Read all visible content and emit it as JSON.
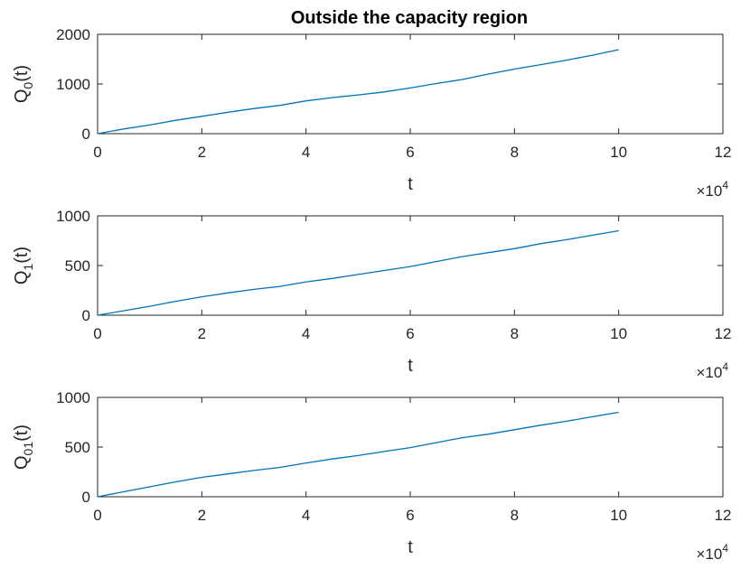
{
  "figure_title": "Outside the capacity region",
  "exponent_base": "×10",
  "exponent_power": "4",
  "line_color": "#0072BD",
  "chart_data": [
    {
      "type": "line",
      "title": "Outside the capacity region",
      "xlabel": "t",
      "ylabel_main": "Q",
      "ylabel_sub": "0",
      "ylabel_tail": "(t)",
      "xlim": [
        0,
        120000
      ],
      "ylim": [
        0,
        2000
      ],
      "xticks": [
        0,
        20000,
        40000,
        60000,
        80000,
        100000,
        120000
      ],
      "xtick_labels": [
        "0",
        "2",
        "4",
        "6",
        "8",
        "10",
        "12"
      ],
      "yticks": [
        0,
        1000,
        2000
      ],
      "ytick_labels": [
        "0",
        "1000",
        "2000"
      ],
      "grid": false,
      "x": [
        0,
        5000,
        10000,
        15000,
        20000,
        25000,
        30000,
        35000,
        40000,
        45000,
        50000,
        55000,
        60000,
        65000,
        70000,
        75000,
        80000,
        85000,
        90000,
        95000,
        100000
      ],
      "y": [
        0,
        95,
        175,
        270,
        350,
        430,
        505,
        570,
        660,
        725,
        780,
        840,
        920,
        1010,
        1090,
        1200,
        1300,
        1390,
        1480,
        1580,
        1690
      ]
    },
    {
      "type": "line",
      "xlabel": "t",
      "ylabel_main": "Q",
      "ylabel_sub": "1",
      "ylabel_tail": "(t)",
      "xlim": [
        0,
        120000
      ],
      "ylim": [
        0,
        1000
      ],
      "xticks": [
        0,
        20000,
        40000,
        60000,
        80000,
        100000,
        120000
      ],
      "xtick_labels": [
        "0",
        "2",
        "4",
        "6",
        "8",
        "10",
        "12"
      ],
      "yticks": [
        0,
        500,
        1000
      ],
      "ytick_labels": [
        "0",
        "500",
        "1000"
      ],
      "grid": false,
      "x": [
        0,
        5000,
        10000,
        15000,
        20000,
        25000,
        30000,
        35000,
        40000,
        45000,
        50000,
        55000,
        60000,
        65000,
        70000,
        75000,
        80000,
        85000,
        90000,
        95000,
        100000
      ],
      "y": [
        0,
        45,
        90,
        140,
        185,
        225,
        260,
        290,
        335,
        370,
        410,
        450,
        490,
        540,
        590,
        630,
        670,
        720,
        760,
        805,
        850
      ]
    },
    {
      "type": "line",
      "xlabel": "t",
      "ylabel_main": "Q",
      "ylabel_sub": "01",
      "ylabel_tail": "(t)",
      "xlim": [
        0,
        120000
      ],
      "ylim": [
        0,
        1000
      ],
      "xticks": [
        0,
        20000,
        40000,
        60000,
        80000,
        100000,
        120000
      ],
      "xtick_labels": [
        "0",
        "2",
        "4",
        "6",
        "8",
        "10",
        "12"
      ],
      "yticks": [
        0,
        500,
        1000
      ],
      "ytick_labels": [
        "0",
        "500",
        "1000"
      ],
      "grid": false,
      "x": [
        0,
        5000,
        10000,
        15000,
        20000,
        25000,
        30000,
        35000,
        40000,
        45000,
        50000,
        55000,
        60000,
        65000,
        70000,
        75000,
        80000,
        85000,
        90000,
        95000,
        100000
      ],
      "y": [
        0,
        50,
        100,
        150,
        195,
        230,
        265,
        295,
        340,
        380,
        415,
        455,
        495,
        545,
        595,
        630,
        675,
        720,
        760,
        805,
        850
      ]
    }
  ]
}
